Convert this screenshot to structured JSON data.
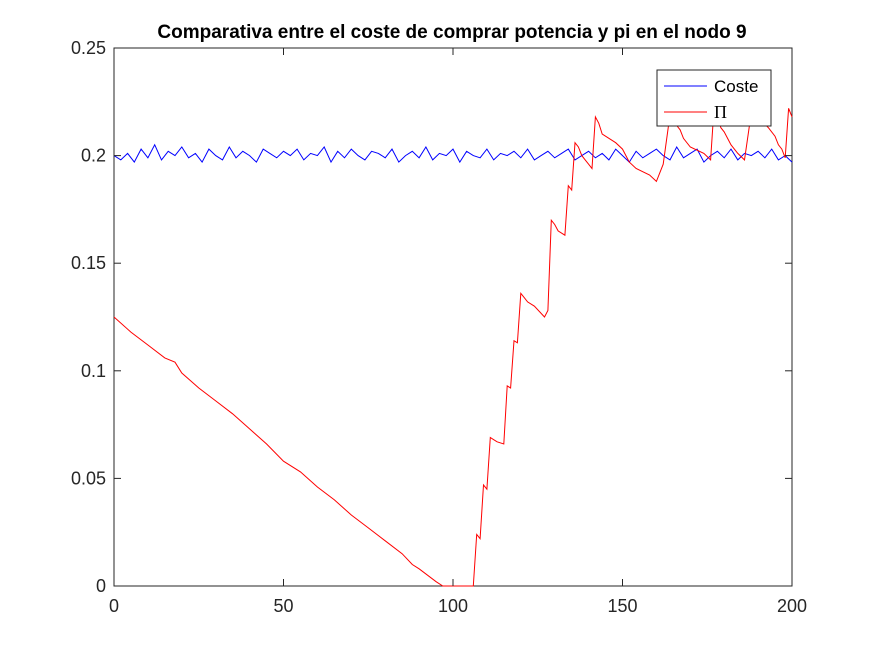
{
  "chart_data": {
    "type": "line",
    "title": "Comparativa entre el coste de comprar potencia y pi en el nodo 9",
    "xlabel": "",
    "ylabel": "",
    "xlim": [
      0,
      200
    ],
    "ylim": [
      0,
      0.25
    ],
    "xticks": [
      "0",
      "50",
      "100",
      "150",
      "200"
    ],
    "yticks": [
      "0",
      "0.05",
      "0.1",
      "0.15",
      "0.2",
      "0.25"
    ],
    "grid": false,
    "legend_position": "top-right",
    "series": [
      {
        "name": "Coste",
        "color": "#0000ff",
        "x": [
          0,
          2,
          4,
          6,
          8,
          10,
          12,
          14,
          16,
          18,
          20,
          22,
          24,
          26,
          28,
          30,
          32,
          34,
          36,
          38,
          40,
          42,
          44,
          46,
          48,
          50,
          52,
          54,
          56,
          58,
          60,
          62,
          64,
          66,
          68,
          70,
          72,
          74,
          76,
          78,
          80,
          82,
          84,
          86,
          88,
          90,
          92,
          94,
          96,
          98,
          100,
          102,
          104,
          106,
          108,
          110,
          112,
          114,
          116,
          118,
          120,
          122,
          124,
          126,
          128,
          130,
          132,
          134,
          136,
          138,
          140,
          142,
          144,
          146,
          148,
          150,
          152,
          154,
          156,
          158,
          160,
          162,
          164,
          166,
          168,
          170,
          172,
          174,
          176,
          178,
          180,
          182,
          184,
          186,
          188,
          190,
          192,
          194,
          196,
          198,
          200
        ],
        "y": [
          0.2,
          0.198,
          0.201,
          0.197,
          0.203,
          0.199,
          0.205,
          0.198,
          0.202,
          0.2,
          0.204,
          0.199,
          0.201,
          0.197,
          0.203,
          0.2,
          0.198,
          0.204,
          0.199,
          0.202,
          0.2,
          0.197,
          0.203,
          0.201,
          0.199,
          0.202,
          0.2,
          0.203,
          0.198,
          0.201,
          0.2,
          0.204,
          0.197,
          0.202,
          0.199,
          0.203,
          0.2,
          0.198,
          0.202,
          0.201,
          0.199,
          0.203,
          0.197,
          0.2,
          0.202,
          0.199,
          0.204,
          0.198,
          0.201,
          0.2,
          0.203,
          0.197,
          0.202,
          0.2,
          0.199,
          0.203,
          0.198,
          0.201,
          0.2,
          0.202,
          0.199,
          0.203,
          0.198,
          0.2,
          0.202,
          0.199,
          0.201,
          0.203,
          0.198,
          0.2,
          0.202,
          0.199,
          0.201,
          0.198,
          0.203,
          0.2,
          0.197,
          0.202,
          0.199,
          0.201,
          0.203,
          0.2,
          0.198,
          0.204,
          0.199,
          0.201,
          0.203,
          0.197,
          0.2,
          0.202,
          0.199,
          0.203,
          0.198,
          0.201,
          0.2,
          0.202,
          0.199,
          0.203,
          0.198,
          0.2,
          0.197
        ]
      },
      {
        "name": "Π",
        "color": "#ff0000",
        "x": [
          0,
          5,
          10,
          15,
          18,
          20,
          25,
          30,
          35,
          40,
          45,
          50,
          55,
          60,
          65,
          70,
          75,
          80,
          85,
          88,
          90,
          95,
          97,
          100,
          104,
          106,
          107,
          108,
          109,
          110,
          111,
          112,
          113,
          115,
          116,
          117,
          118,
          119,
          120,
          121,
          122,
          124,
          127,
          128,
          129,
          130,
          131,
          133,
          134,
          135,
          136,
          137,
          138,
          139,
          140,
          141,
          142,
          143,
          144,
          148,
          150,
          151,
          152,
          154,
          158,
          160,
          162,
          164,
          165,
          166,
          167,
          168,
          170,
          174,
          176,
          177,
          178,
          179,
          180,
          181,
          182,
          184,
          186,
          188,
          190,
          193,
          195,
          196,
          197,
          198,
          199,
          200
        ],
        "y": [
          0.125,
          0.118,
          0.112,
          0.106,
          0.104,
          0.099,
          0.092,
          0.086,
          0.08,
          0.073,
          0.066,
          0.058,
          0.053,
          0.046,
          0.04,
          0.033,
          0.027,
          0.021,
          0.015,
          0.01,
          0.008,
          0.002,
          0,
          0,
          0,
          0,
          0.024,
          0.022,
          0.047,
          0.045,
          0.069,
          0.068,
          0.067,
          0.066,
          0.093,
          0.092,
          0.114,
          0.113,
          0.136,
          0.134,
          0.132,
          0.13,
          0.125,
          0.128,
          0.17,
          0.168,
          0.165,
          0.163,
          0.186,
          0.184,
          0.206,
          0.204,
          0.2,
          0.198,
          0.196,
          0.194,
          0.218,
          0.215,
          0.21,
          0.206,
          0.203,
          0.2,
          0.197,
          0.194,
          0.191,
          0.188,
          0.196,
          0.219,
          0.217,
          0.214,
          0.212,
          0.208,
          0.204,
          0.201,
          0.198,
          0.222,
          0.218,
          0.213,
          0.211,
          0.208,
          0.205,
          0.201,
          0.198,
          0.22,
          0.218,
          0.213,
          0.209,
          0.205,
          0.203,
          0.199,
          0.222,
          0.218
        ]
      }
    ]
  }
}
